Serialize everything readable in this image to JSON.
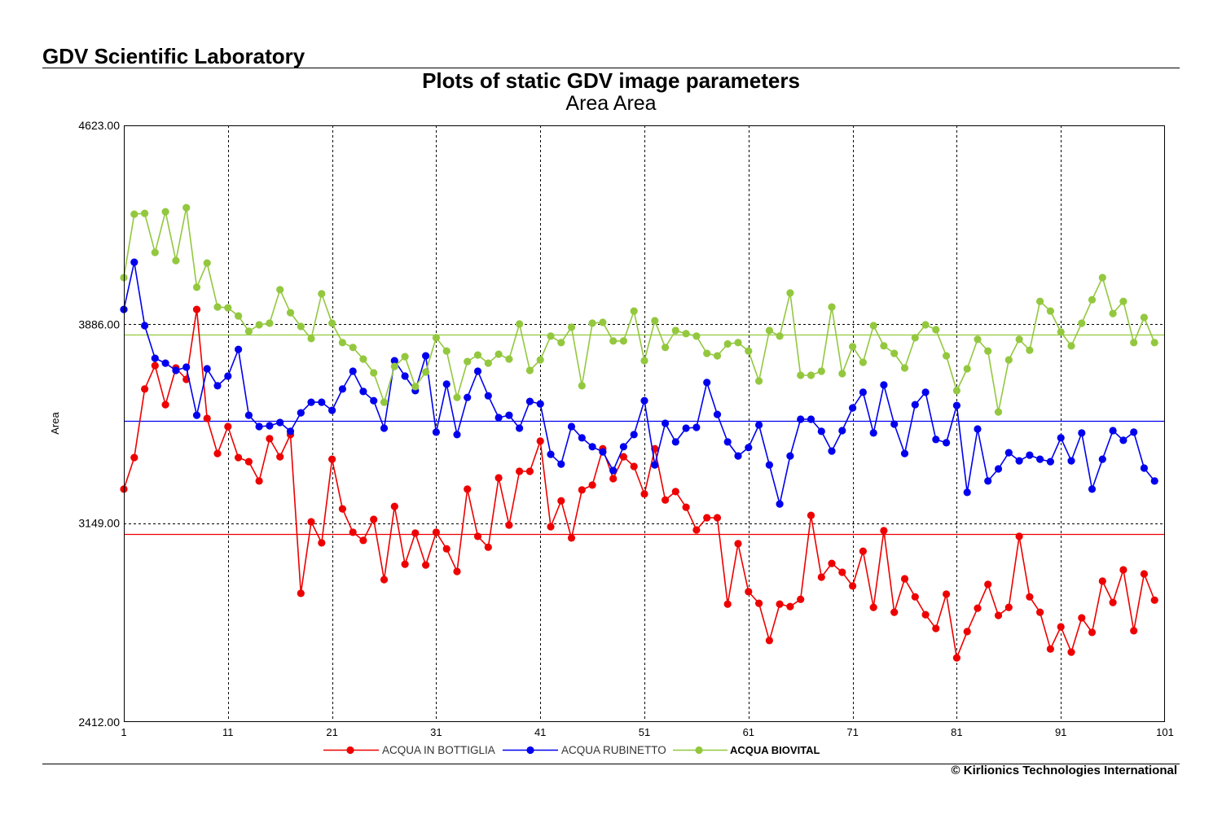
{
  "header": {
    "lab_name": "GDV Scientific Laboratory"
  },
  "footer": {
    "copyright": "© Kirlionics Technologies International"
  },
  "chart_data": {
    "type": "line",
    "title": "Plots of static GDV image parameters",
    "subtitle": "Area Area",
    "xlabel": "",
    "ylabel": "Area",
    "xlim": [
      1,
      101
    ],
    "ylim": [
      2412,
      4623
    ],
    "x_ticks": [
      1,
      11,
      21,
      31,
      41,
      51,
      61,
      71,
      81,
      91,
      101
    ],
    "y_ticks": [
      4623,
      3886,
      3149,
      2412
    ],
    "y_tick_labels": [
      "4623.00",
      "3886.00",
      "3149.00",
      "2412.00"
    ],
    "grid": {
      "vertical_dashed_at_ticks": true,
      "horizontal_dashed_at": [
        3886,
        3149
      ]
    },
    "legend_position": "bottom",
    "x": [
      1,
      2,
      3,
      4,
      5,
      6,
      7,
      8,
      9,
      10,
      11,
      12,
      13,
      14,
      15,
      16,
      17,
      18,
      19,
      20,
      21,
      22,
      23,
      24,
      25,
      26,
      27,
      28,
      29,
      30,
      31,
      32,
      33,
      34,
      35,
      36,
      37,
      38,
      39,
      40,
      41,
      42,
      43,
      44,
      45,
      46,
      47,
      48,
      49,
      50,
      51,
      52,
      53,
      54,
      55,
      56,
      57,
      58,
      59,
      60,
      61,
      62,
      63,
      64,
      65,
      66,
      67,
      68,
      69,
      70,
      71,
      72,
      73,
      74,
      75,
      76,
      77,
      78,
      79,
      80,
      81,
      82,
      83,
      84,
      85,
      86,
      87,
      88,
      89,
      90,
      91,
      92,
      93,
      94,
      95,
      96,
      97,
      98,
      99,
      100
    ],
    "series": [
      {
        "name": "ACQUA IN BOTTIGLIA",
        "color": "#ee0000",
        "mean": 3109,
        "values": [
          3275,
          3392,
          3646,
          3733,
          3588,
          3724,
          3682,
          3941,
          3537,
          3407,
          3507,
          3392,
          3377,
          3305,
          3462,
          3395,
          3477,
          2889,
          3154,
          3076,
          3386,
          3202,
          3115,
          3085,
          3163,
          2940,
          3211,
          2997,
          3112,
          2994,
          3115,
          3054,
          2970,
          3275,
          3100,
          3060,
          3317,
          3142,
          3341,
          3341,
          3453,
          3136,
          3232,
          3094,
          3272,
          3290,
          3425,
          3314,
          3395,
          3359,
          3257,
          3425,
          3235,
          3266,
          3208,
          3124,
          3169,
          3169,
          2849,
          3073,
          2895,
          2852,
          2714,
          2849,
          2840,
          2867,
          3178,
          2949,
          3000,
          2967,
          2916,
          3045,
          2837,
          3121,
          2819,
          2943,
          2876,
          2810,
          2759,
          2886,
          2650,
          2747,
          2834,
          2922,
          2807,
          2837,
          3100,
          2876,
          2819,
          2683,
          2765,
          2671,
          2798,
          2744,
          2934,
          2855,
          2976,
          2750,
          2961,
          2864
        ]
      },
      {
        "name": "ACQUA RUBINETTO",
        "color": "#0000ee",
        "mean": 3528,
        "values": [
          3941,
          4116,
          3881,
          3760,
          3742,
          3715,
          3727,
          3549,
          3721,
          3658,
          3694,
          3793,
          3549,
          3507,
          3510,
          3522,
          3489,
          3558,
          3597,
          3597,
          3567,
          3646,
          3712,
          3637,
          3603,
          3501,
          3751,
          3694,
          3640,
          3769,
          3486,
          3664,
          3477,
          3615,
          3712,
          3621,
          3540,
          3549,
          3501,
          3600,
          3591,
          3404,
          3368,
          3507,
          3465,
          3432,
          3413,
          3344,
          3432,
          3477,
          3603,
          3365,
          3519,
          3450,
          3501,
          3504,
          3670,
          3552,
          3450,
          3398,
          3429,
          3513,
          3365,
          3220,
          3398,
          3534,
          3534,
          3489,
          3416,
          3492,
          3576,
          3634,
          3483,
          3661,
          3516,
          3407,
          3588,
          3634,
          3459,
          3447,
          3585,
          3263,
          3498,
          3305,
          3350,
          3410,
          3380,
          3401,
          3386,
          3377,
          3465,
          3380,
          3483,
          3275,
          3386,
          3492,
          3456,
          3486,
          3353,
          3305
        ]
      },
      {
        "name": "ACQUA BIOVITAL",
        "color": "#93c83e",
        "mean": 3848,
        "values": [
          4059,
          4294,
          4297,
          4152,
          4303,
          4122,
          4318,
          4023,
          4113,
          3950,
          3947,
          3917,
          3860,
          3884,
          3890,
          4014,
          3929,
          3878,
          3833,
          3999,
          3890,
          3818,
          3800,
          3757,
          3706,
          3597,
          3730,
          3766,
          3655,
          3709,
          3836,
          3787,
          3615,
          3748,
          3772,
          3742,
          3775,
          3757,
          3887,
          3715,
          3754,
          3842,
          3818,
          3875,
          3658,
          3890,
          3893,
          3824,
          3824,
          3935,
          3751,
          3899,
          3800,
          3863,
          3851,
          3842,
          3778,
          3769,
          3813,
          3818,
          3787,
          3676,
          3863,
          3842,
          4002,
          3697,
          3697,
          3712,
          3950,
          3703,
          3803,
          3745,
          3881,
          3806,
          3778,
          3724,
          3836,
          3884,
          3866,
          3769,
          3640,
          3721,
          3830,
          3787,
          3561,
          3754,
          3830,
          3790,
          3971,
          3935,
          3857,
          3806,
          3890,
          3977,
          4059,
          3926,
          3971,
          3818,
          3911,
          3818
        ]
      }
    ]
  }
}
